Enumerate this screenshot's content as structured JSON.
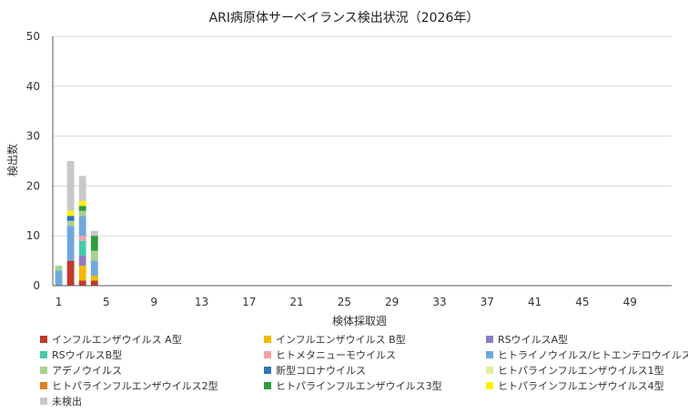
{
  "chart_data": {
    "type": "bar",
    "stacked": true,
    "title": "ARI病原体サーベイランス検出状況（2026年）",
    "xlabel": "検体採取週",
    "ylabel": "検出数",
    "ylim": [
      0,
      50
    ],
    "yticks": [
      0,
      10,
      20,
      30,
      40,
      50
    ],
    "xlim": [
      1,
      52
    ],
    "xticks": [
      1,
      5,
      9,
      13,
      17,
      21,
      25,
      29,
      33,
      37,
      41,
      45,
      49
    ],
    "grid": true,
    "legend_position": "bottom",
    "x": [
      1,
      2,
      3,
      4
    ],
    "series": [
      {
        "name": "インフルエンザウイルス A型",
        "color": "#c0392b",
        "values": [
          0,
          5,
          1,
          1
        ]
      },
      {
        "name": "インフルエンザウイルス B型",
        "color": "#f5b700",
        "values": [
          0,
          0,
          3,
          1
        ]
      },
      {
        "name": "RSウイルスA型",
        "color": "#8e7cc3",
        "values": [
          0,
          0,
          2,
          0
        ]
      },
      {
        "name": "RSウイルスB型",
        "color": "#48c9b0",
        "values": [
          0,
          0,
          3,
          0
        ]
      },
      {
        "name": "ヒトメタニューモウイルス",
        "color": "#f1a3a3",
        "values": [
          0,
          0,
          1,
          0
        ]
      },
      {
        "name": "ヒトライノウイルス/ヒトエンテロウイルス",
        "color": "#6fa8dc",
        "values": [
          3,
          7,
          4,
          3
        ]
      },
      {
        "name": "アデノウイルス",
        "color": "#a9d18e",
        "values": [
          1,
          1,
          1,
          2
        ]
      },
      {
        "name": "新型コロナウイルス",
        "color": "#2e75b6",
        "values": [
          0,
          1,
          0,
          0
        ]
      },
      {
        "name": "ヒトパラインフルエンザウイルス1型",
        "color": "#e2ef9a",
        "values": [
          0,
          0,
          0,
          0
        ]
      },
      {
        "name": "ヒトパラインフルエンザウイルス2型",
        "color": "#e67e22",
        "values": [
          0,
          0,
          0,
          0
        ]
      },
      {
        "name": "ヒトパラインフルエンザウイルス3型",
        "color": "#2e9b3e",
        "values": [
          0,
          0,
          1,
          3
        ]
      },
      {
        "name": "ヒトパラインフルエンザウイルス4型",
        "color": "#ffef00",
        "values": [
          0,
          1,
          1,
          0
        ]
      },
      {
        "name": "未検出",
        "color": "#c8c8c8",
        "values": [
          0,
          10,
          5,
          1
        ]
      }
    ]
  }
}
